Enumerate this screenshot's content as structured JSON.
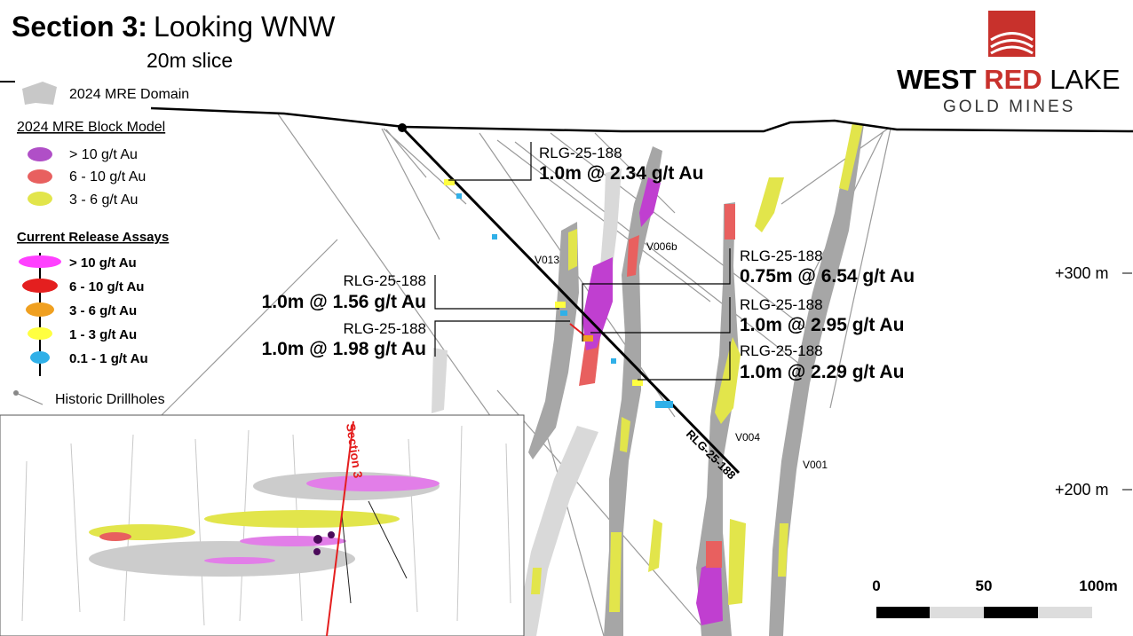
{
  "header": {
    "title_bold": "Section 3:",
    "title": "Looking WNW",
    "subtitle": "20m slice"
  },
  "logo": {
    "word1": "WEST",
    "word2": "RED",
    "word3": "LAKE",
    "tagline": "GOLD MINES"
  },
  "legend": {
    "domain": "2024 MRE Domain",
    "block_model": {
      "title": "2024 MRE Block Model",
      "items": [
        "> 10 g/t Au",
        "6 - 10 g/t Au",
        "3 - 6 g/t Au"
      ]
    },
    "assays": {
      "title": "Current Release Assays",
      "items": [
        "> 10 g/t Au",
        "6 - 10 g/t Au",
        "3 - 6 g/t Au",
        "1 - 3 g/t Au",
        "0.1 - 1 g/t Au"
      ]
    },
    "historic": "Historic Drillholes"
  },
  "callouts": [
    {
      "hole": "RLG-25-188",
      "interval": "1.0m @ 2.34 g/t Au"
    },
    {
      "hole": "RLG-25-188",
      "interval": "1.0m @ 1.56 g/t Au"
    },
    {
      "hole": "RLG-25-188",
      "interval": "1.0m @ 1.98 g/t Au"
    },
    {
      "hole": "RLG-25-188",
      "interval": "0.75m @ 6.54 g/t Au"
    },
    {
      "hole": "RLG-25-188",
      "interval": "1.0m @ 2.95 g/t Au"
    },
    {
      "hole": "RLG-25-188",
      "interval": "1.0m @ 2.29 g/t Au"
    }
  ],
  "veins": [
    "V013",
    "V006b",
    "V004",
    "V001"
  ],
  "drillhole": "RLG-25-188",
  "elevations": [
    "+300 m",
    "+200 m"
  ],
  "inset": {
    "section": "Section 3"
  },
  "scale": [
    "0",
    "50",
    "100m"
  ]
}
